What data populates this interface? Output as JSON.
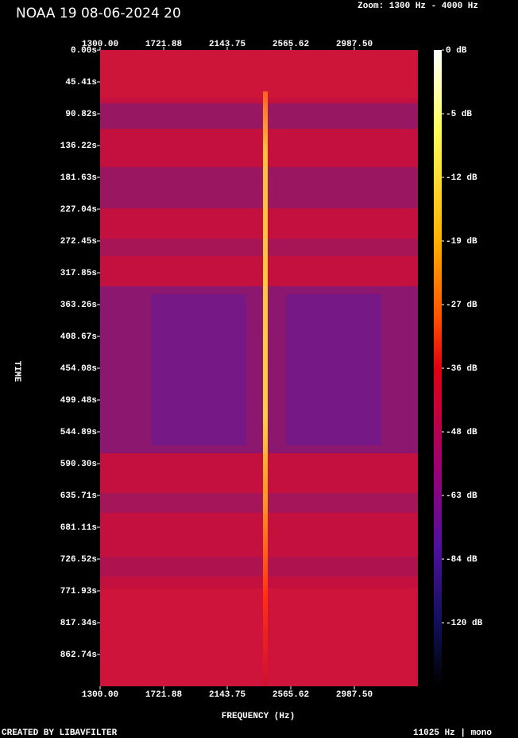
{
  "chart_data": {
    "type": "spectrogram",
    "title": "NOAA 19 08-06-2024 20",
    "zoom": "Zoom: 1300 Hz - 4000 Hz",
    "ylabel": "TIME",
    "xlabel": "FREQUENCY (Hz)",
    "footer_left": "CREATED BY LIBAVFILTER",
    "footer_right": "11025 Hz | mono",
    "xlim": [
      1300,
      3409.375
    ],
    "xticks": [
      {
        "value": 1300,
        "label": "1300.00"
      },
      {
        "value": 1721.88,
        "label": "1721.88"
      },
      {
        "value": 2143.75,
        "label": "2143.75"
      },
      {
        "value": 2565.62,
        "label": "2565.62"
      },
      {
        "value": 2987.5,
        "label": "2987.50"
      }
    ],
    "ylim": [
      0,
      908.15
    ],
    "yticks": [
      {
        "value": 0,
        "label": "0.00s"
      },
      {
        "value": 45.41,
        "label": "45.41s"
      },
      {
        "value": 90.82,
        "label": "90.82s"
      },
      {
        "value": 136.22,
        "label": "136.22s"
      },
      {
        "value": 181.63,
        "label": "181.63s"
      },
      {
        "value": 227.04,
        "label": "227.04s"
      },
      {
        "value": 272.45,
        "label": "272.45s"
      },
      {
        "value": 317.85,
        "label": "317.85s"
      },
      {
        "value": 363.26,
        "label": "363.26s"
      },
      {
        "value": 408.67,
        "label": "408.67s"
      },
      {
        "value": 454.08,
        "label": "454.08s"
      },
      {
        "value": 499.48,
        "label": "499.48s"
      },
      {
        "value": 544.89,
        "label": "544.89s"
      },
      {
        "value": 590.3,
        "label": "590.30s"
      },
      {
        "value": 635.71,
        "label": "635.71s"
      },
      {
        "value": 681.11,
        "label": "681.11s"
      },
      {
        "value": 726.52,
        "label": "726.52s"
      },
      {
        "value": 771.93,
        "label": "771.93s"
      },
      {
        "value": 817.34,
        "label": "817.34s"
      },
      {
        "value": 862.74,
        "label": "862.74s"
      }
    ],
    "colorbar_ticks": [
      {
        "value": 0,
        "label": "0 dB"
      },
      {
        "value": -5,
        "label": "-5 dB"
      },
      {
        "value": -12,
        "label": "-12 dB"
      },
      {
        "value": -19,
        "label": "-19 dB"
      },
      {
        "value": -27,
        "label": "-27 dB"
      },
      {
        "value": -36,
        "label": "-36 dB"
      },
      {
        "value": -48,
        "label": "-48 dB"
      },
      {
        "value": -63,
        "label": "-63 dB"
      },
      {
        "value": -84,
        "label": "-84 dB"
      },
      {
        "value": -120,
        "label": "-120 dB"
      }
    ]
  }
}
